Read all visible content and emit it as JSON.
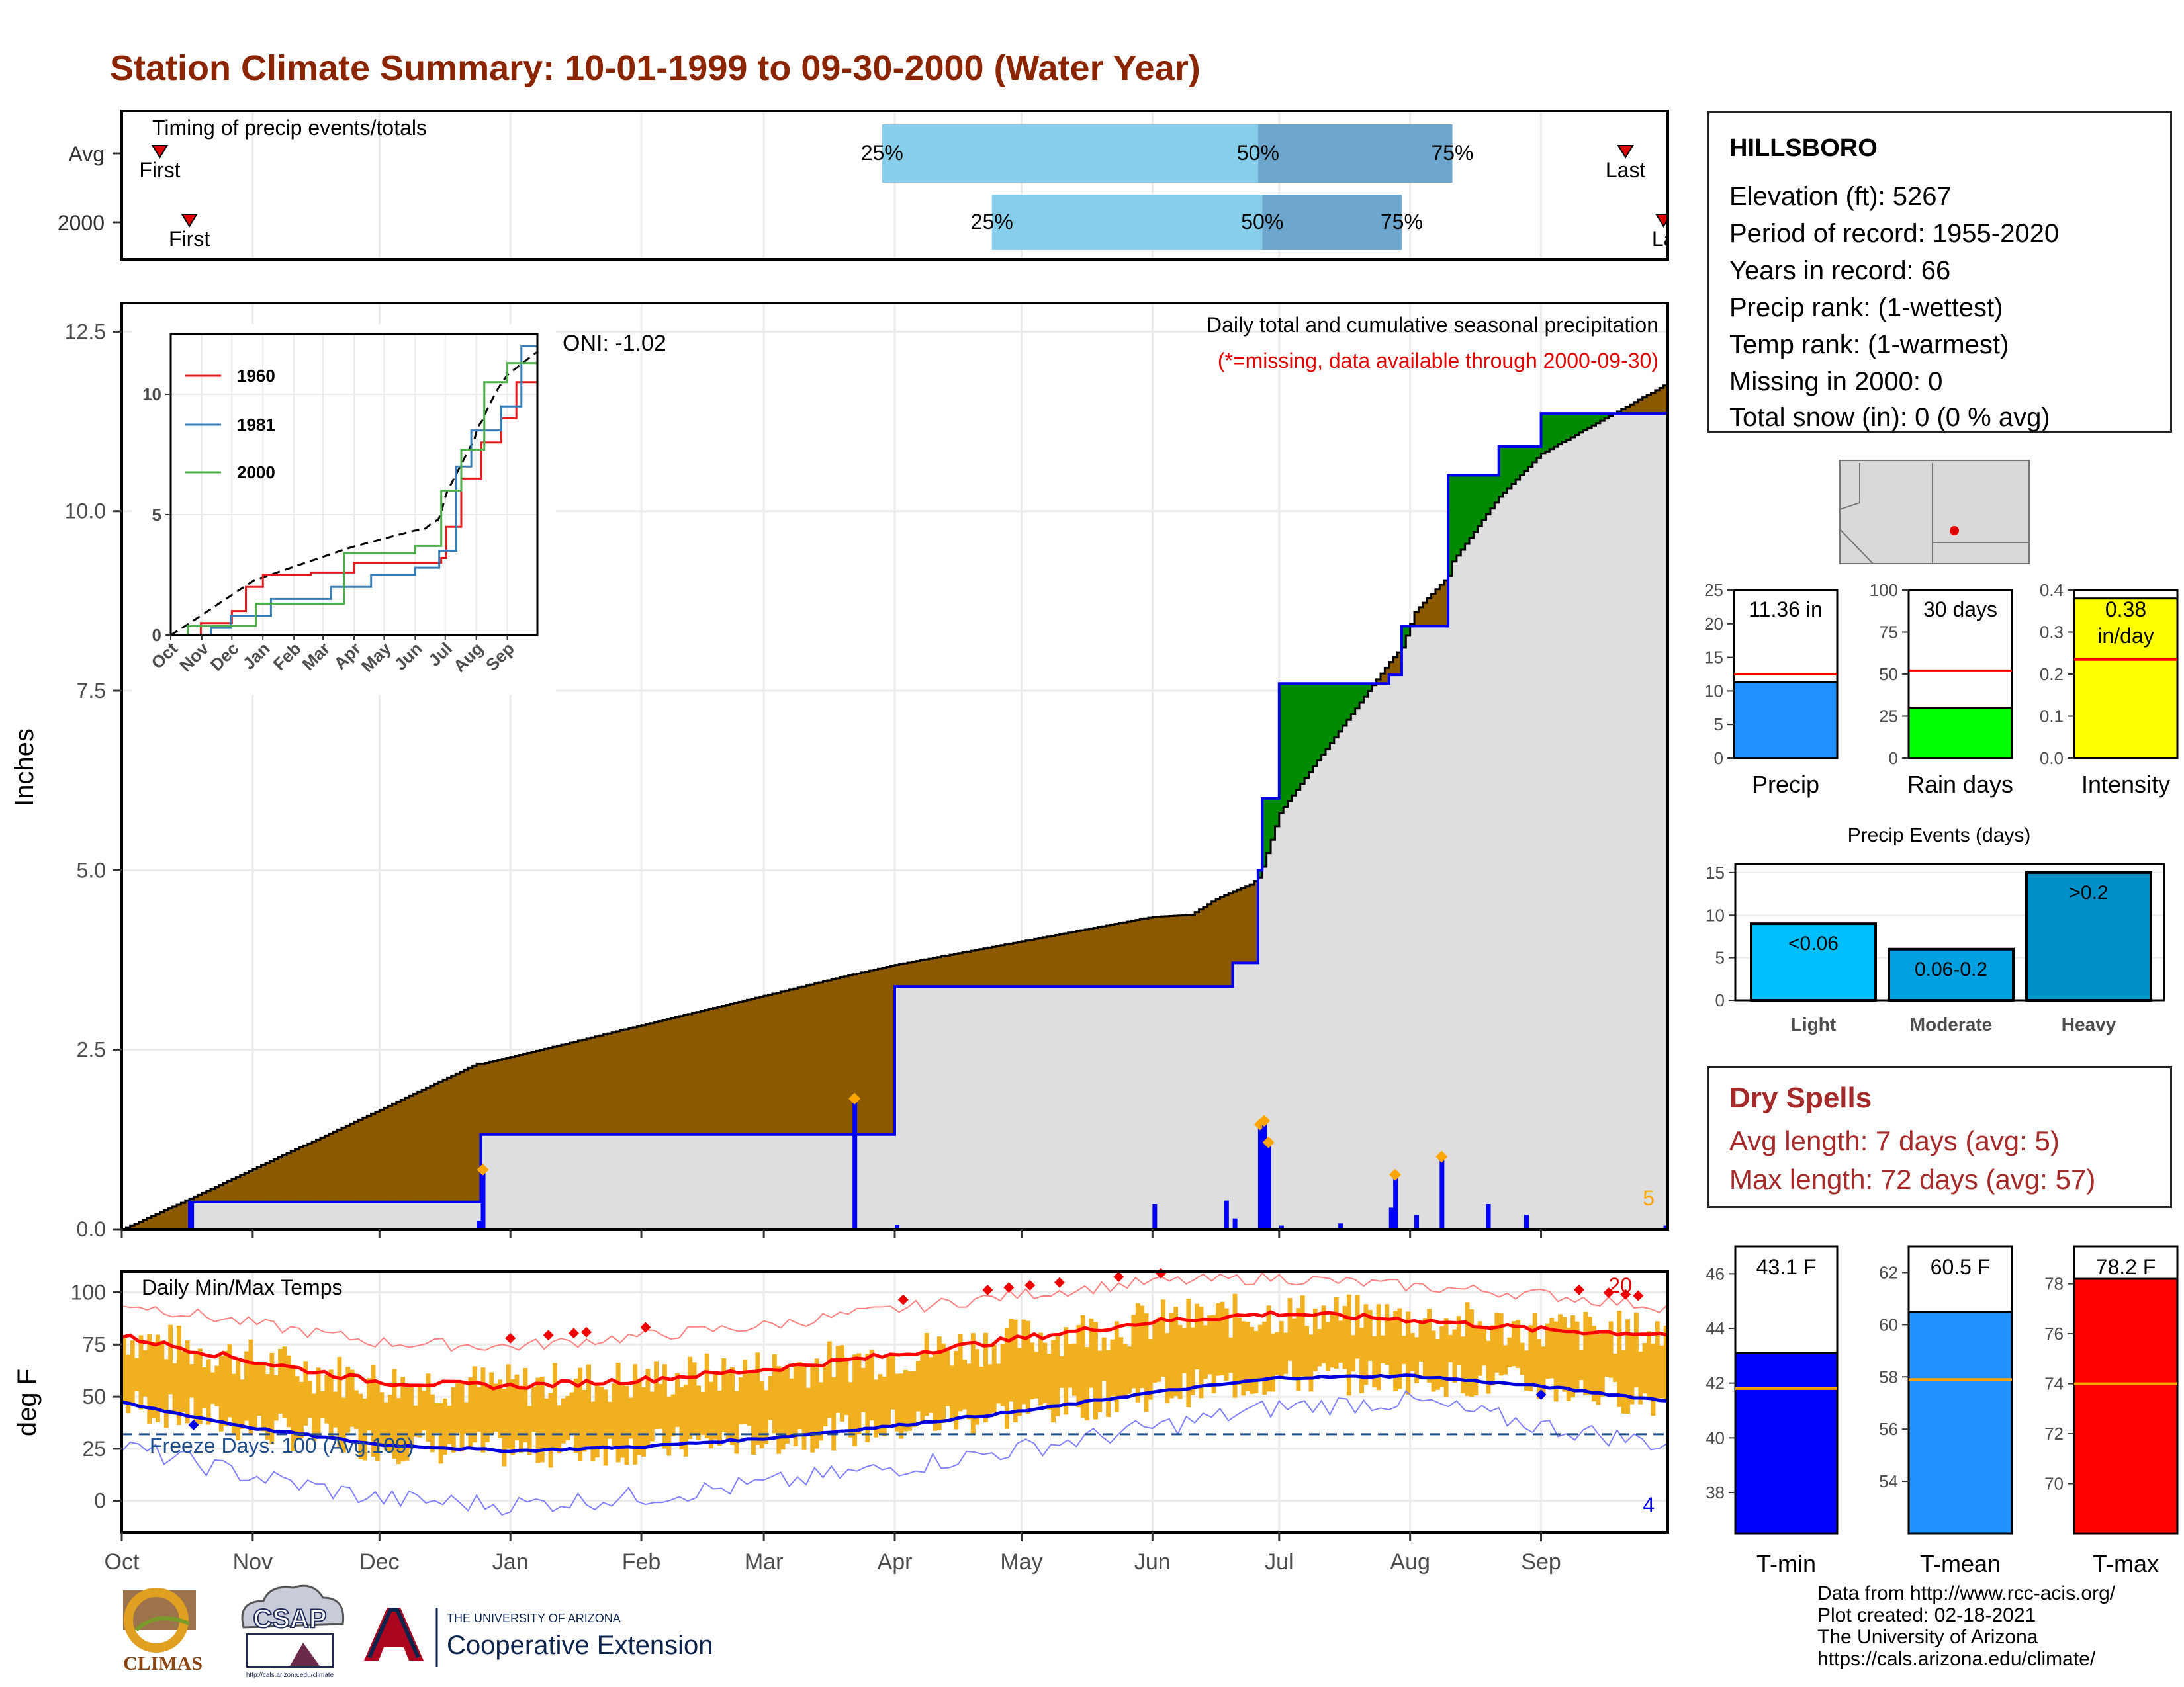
{
  "title": "Station Climate Summary: 10-01-1999 to 09-30-2000 (Water Year)",
  "timing": {
    "label": "Timing of precip events/totals",
    "rows": [
      {
        "name": "Avg",
        "first_label": "First",
        "last_label": "Last",
        "first": "Oct 10",
        "last": "Sep 21",
        "p25": "Mar 29",
        "p50": "Jun 26",
        "p75": "Aug 11"
      },
      {
        "name": "2000",
        "first_label": "First",
        "last_label": "La",
        "first": "Oct 17",
        "last": "Sep 30",
        "p25": "Apr 24",
        "p50": "Jun 27",
        "p75": "Jul 30"
      }
    ],
    "pct_labels": [
      "25%",
      "50%",
      "75%"
    ]
  },
  "main": {
    "ylabel": "Inches",
    "oni": "ONI: -1.02",
    "header": "Daily total and cumulative seasonal precipitation",
    "missing_note": "(*=missing, data available through 2000-09-30)",
    "missing_count": "5",
    "months": [
      "Oct",
      "Nov",
      "Dec",
      "Jan",
      "Feb",
      "Mar",
      "Apr",
      "May",
      "Jun",
      "Jul",
      "Aug",
      "Sep"
    ],
    "yticks": [
      "0.0",
      "2.5",
      "5.0",
      "7.5",
      "10.0",
      "12.5"
    ]
  },
  "inset": {
    "legend": [
      "1960",
      "1981",
      "2000"
    ],
    "colors": [
      "#E41A1C",
      "#377EB8",
      "#4DAF4A"
    ],
    "yticks": [
      "0",
      "5",
      "10"
    ],
    "xticks": [
      "Oct",
      "Nov",
      "Dec",
      "Jan",
      "Feb",
      "Mar",
      "Apr",
      "May",
      "Jun",
      "Jul",
      "Aug",
      "Sep"
    ]
  },
  "temps": {
    "label": "Daily Min/Max Temps",
    "ylabel": "deg F",
    "freeze": "Freeze Days: 100 (Avg:109)",
    "max_count": "20",
    "min_count": "4",
    "yticks": [
      "0",
      "25",
      "50",
      "75",
      "100"
    ]
  },
  "station": {
    "name": "HILLSBORO",
    "lines": [
      "Elevation (ft): 5267",
      "Period of record: 1955-2020",
      "Years in record: 66",
      "Precip rank:  (1-wettest)",
      "Temp rank:  (1-warmest)",
      "Missing in 2000: 0",
      "Total snow (in): 0 (0 % avg)"
    ]
  },
  "totals": [
    {
      "label": "Precip",
      "value": "11.36 in",
      "value_num": 11.36,
      "avg": 12.5,
      "ymax": 25,
      "ticks": [
        "0",
        "5",
        "10",
        "15",
        "20",
        "25"
      ],
      "color": "#1E90FF"
    },
    {
      "label": "Rain days",
      "value": "30 days",
      "value_num": 30,
      "avg": 52,
      "ymax": 100,
      "ticks": [
        "0",
        "25",
        "50",
        "75",
        "100"
      ],
      "color": "#00FF00"
    },
    {
      "label": "Intensity",
      "value": "0.38",
      "value_unit": "in/day",
      "value_num": 0.38,
      "avg": 0.235,
      "ymax": 0.4,
      "ticks": [
        "0.0",
        "0.1",
        "0.2",
        "0.3",
        "0.4"
      ],
      "color": "#FFFF00"
    }
  ],
  "events": {
    "title": "Precip Events (days)",
    "categories": [
      "Light",
      "Moderate",
      "Heavy"
    ],
    "labels": [
      "<0.06",
      "0.06-0.2",
      ">0.2"
    ],
    "values": [
      9,
      6,
      15
    ],
    "ticks": [
      "0",
      "5",
      "10",
      "15"
    ],
    "colors": [
      "#00BFFF",
      "#00A0E0",
      "#0090C8"
    ]
  },
  "dry": {
    "title": "Dry Spells",
    "avg": "Avg length: 7 days (avg: 5)",
    "max": "Max length: 72 days (avg: 57)"
  },
  "temp_bars": [
    {
      "label": "T-min",
      "value": "43.1 F",
      "value_num": 43.1,
      "avg": 41.8,
      "ymin": 36.5,
      "ymax": 47,
      "ticks": [
        "38",
        "40",
        "42",
        "44",
        "46"
      ],
      "color": "#0000FF"
    },
    {
      "label": "T-mean",
      "value": "60.5 F",
      "value_num": 60.5,
      "avg": 57.9,
      "ymin": 52,
      "ymax": 63,
      "ticks": [
        "54",
        "56",
        "58",
        "60",
        "62"
      ],
      "color": "#1E90FF"
    },
    {
      "label": "T-max",
      "value": "78.2 F",
      "value_num": 78.2,
      "avg": 74,
      "ymin": 68,
      "ymax": 79.5,
      "ticks": [
        "70",
        "72",
        "74",
        "76",
        "78"
      ],
      "color": "#FF0000"
    }
  ],
  "footer": [
    "Data from http://www.rcc-acis.org/",
    "Plot created: 02-18-2021",
    "The University of Arizona",
    "https://cals.arizona.edu/climate/"
  ],
  "logos": {
    "climas": "CLIMAS",
    "csap": "CSAP",
    "ua_small": "THE UNIVERSITY OF ARIZONA",
    "ua_big": "Cooperative Extension",
    "csap_url": "http://cals.arizona.edu/climate"
  },
  "chart_data": [
    {
      "type": "area",
      "title": "Daily total and cumulative seasonal precipitation",
      "ylabel": "Inches",
      "ylim": [
        0,
        12.9
      ],
      "x": [
        "Oct 1",
        "Oct 17",
        "Dec 24",
        "Dec 25",
        "Mar 22",
        "Apr 1",
        "Jun 1",
        "Jun 10",
        "Jun 16",
        "Jun 20",
        "Jun 24",
        "Jun 26",
        "Jun 27",
        "Jul 1",
        "Jul 27",
        "Jul 30",
        "Aug 2",
        "Aug 10",
        "Aug 11",
        "Aug 22",
        "Sep 1",
        "Sep 30"
      ],
      "series": [
        {
          "name": "2000",
          "values": [
            0,
            0.38,
            0.38,
            1.32,
            1.32,
            3.38,
            3.38,
            3.38,
            3.38,
            3.71,
            3.71,
            5.0,
            6.0,
            7.6,
            7.72,
            8.4,
            8.4,
            10.5,
            10.5,
            10.9,
            11.36,
            11.36
          ]
        },
        {
          "name": "Avg",
          "values": [
            0,
            0.42,
            2.3,
            2.3,
            3.55,
            3.68,
            4.35,
            4.38,
            4.6,
            4.7,
            4.8,
            4.9,
            5.05,
            5.8,
            7.9,
            8.1,
            8.6,
            9.1,
            9.3,
            10.2,
            10.8,
            11.75
          ]
        }
      ],
      "daily_bars": {
        "x": [
          "Oct 17",
          "Dec 24",
          "Dec 25",
          "Mar 22",
          "Apr 1",
          "Jun 1",
          "Jun 18",
          "Jun 20",
          "Jun 26",
          "Jun 27",
          "Jun 28",
          "Jul 1",
          "Jul 15",
          "Jul 27",
          "Jul 28",
          "Aug 2",
          "Aug 8",
          "Aug 19",
          "Aug 28",
          "Sep 30"
        ],
        "values": [
          0.38,
          0.12,
          0.82,
          1.81,
          0.06,
          0.35,
          0.4,
          0.15,
          1.45,
          1.5,
          1.2,
          0.05,
          0.08,
          0.3,
          0.75,
          0.2,
          1.0,
          0.35,
          0.2,
          0.05
        ]
      }
    },
    {
      "type": "line",
      "title": "Daily Min/Max Temps",
      "ylabel": "deg F",
      "ylim": [
        -15,
        110
      ],
      "x": [
        "Oct",
        "Nov",
        "Dec",
        "Jan",
        "Feb",
        "Mar",
        "Apr",
        "May",
        "Jun",
        "Jul",
        "Aug",
        "Sep",
        "Sep 30"
      ],
      "series": [
        {
          "name": "Avg max",
          "values": [
            79,
            67,
            57,
            55,
            58,
            63,
            70,
            78,
            86,
            90,
            87,
            82,
            80
          ]
        },
        {
          "name": "Avg min",
          "values": [
            47,
            35,
            27,
            24,
            26,
            30,
            36,
            43,
            52,
            59,
            60,
            55,
            48
          ]
        },
        {
          "name": "Record max",
          "values": [
            95,
            85,
            76,
            74,
            79,
            84,
            92,
            99,
            105,
            107,
            103,
            99,
            93
          ]
        },
        {
          "name": "Record min",
          "values": [
            26,
            12,
            1,
            -2,
            2,
            8,
            16,
            25,
            35,
            45,
            48,
            36,
            27
          ]
        }
      ],
      "freeze_line": 32
    }
  ]
}
